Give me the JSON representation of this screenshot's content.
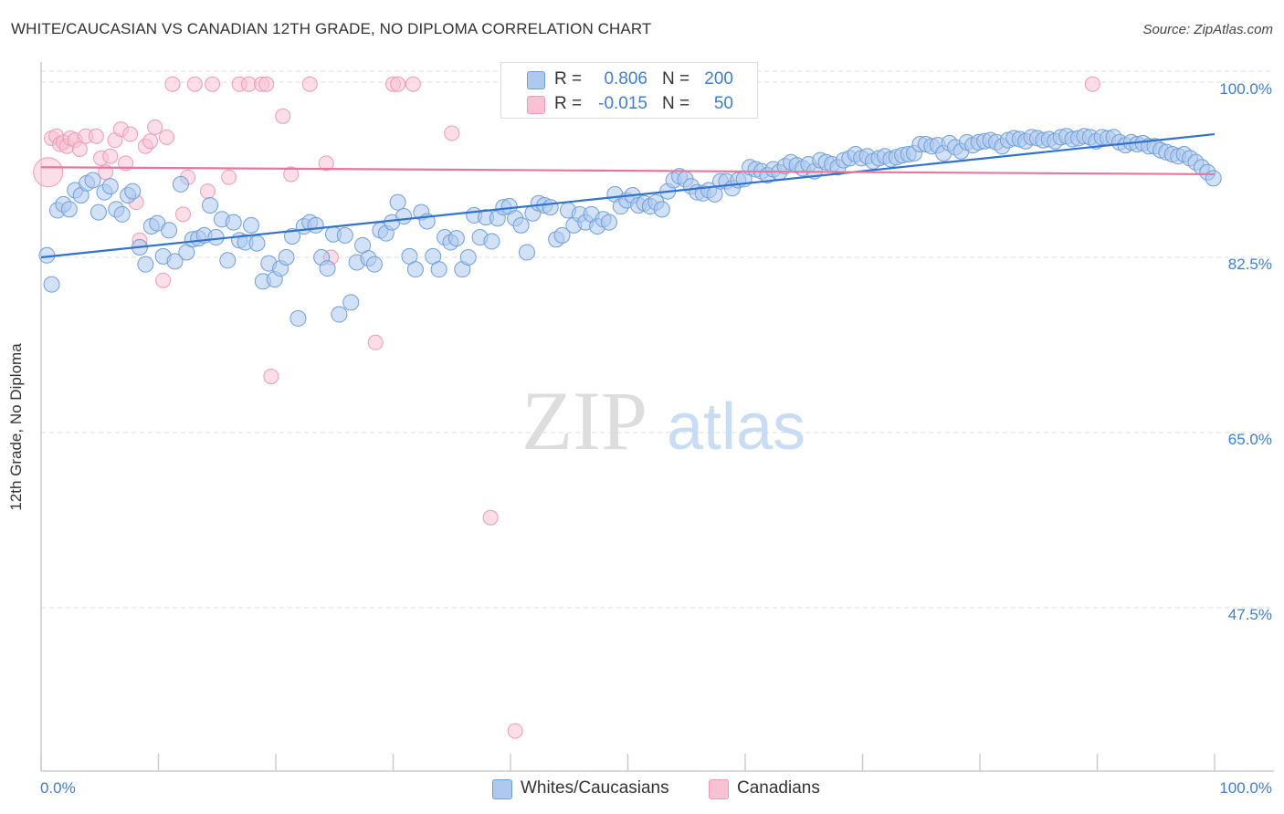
{
  "title": "WHITE/CAUCASIAN VS CANADIAN 12TH GRADE, NO DIPLOMA CORRELATION CHART",
  "source": "Source: ZipAtlas.com",
  "watermark": {
    "zip": "ZIP",
    "atlas": "atlas"
  },
  "colors": {
    "blue_fill": "#aec9ee",
    "blue_stroke": "#6e9fd9",
    "blue_line": "#2f72d0",
    "pink_fill": "#f7c3d3",
    "pink_stroke": "#ee9ab5",
    "pink_line": "#e6779c",
    "tick_label": "#3e7fcf",
    "grid": "#dddddd"
  },
  "legend": {
    "r_label": "R =",
    "n_label": "N =",
    "rows": [
      {
        "series": "Whites/Caucasians",
        "r": "0.806",
        "n": "200",
        "color": "#aec9ee"
      },
      {
        "series": "Canadians",
        "r": "-0.015",
        "n": "50",
        "color": "#f7c3d3"
      }
    ]
  },
  "chart_data": {
    "type": "scatter",
    "title": "WHITE/CAUCASIAN VS CANADIAN 12TH GRADE, NO DIPLOMA CORRELATION CHART",
    "xlabel": "",
    "ylabel": "12th Grade, No Diploma",
    "xlim": [
      0,
      100
    ],
    "ylim": [
      32.5,
      101.5
    ],
    "x_tick_labels": [
      "0.0%",
      "100.0%"
    ],
    "y_ticks": [
      100.0,
      82.5,
      65.0,
      47.5
    ],
    "y_tick_labels": [
      "100.0%",
      "82.5%",
      "65.0%",
      "47.5%"
    ],
    "grid": true,
    "legend_position": "top-center",
    "series": [
      {
        "name": "Whites/Caucasians",
        "color": "#aec9ee",
        "trend": {
          "x": [
            0,
            100
          ],
          "y": [
            82.5,
            94.8
          ]
        },
        "points": [
          [
            0.5,
            82.7
          ],
          [
            0.9,
            79.8
          ],
          [
            1.4,
            87.2
          ],
          [
            1.9,
            87.8
          ],
          [
            2.4,
            87.3
          ],
          [
            2.9,
            89.2
          ],
          [
            3.4,
            88.7
          ],
          [
            3.9,
            89.9
          ],
          [
            4.4,
            90.2
          ],
          [
            4.9,
            87.0
          ],
          [
            5.4,
            89.0
          ],
          [
            5.9,
            89.6
          ],
          [
            6.4,
            87.3
          ],
          [
            6.9,
            86.8
          ],
          [
            7.4,
            88.7
          ],
          [
            7.8,
            89.1
          ],
          [
            8.4,
            83.5
          ],
          [
            8.9,
            81.8
          ],
          [
            9.4,
            85.6
          ],
          [
            9.9,
            85.9
          ],
          [
            10.4,
            82.6
          ],
          [
            10.9,
            85.2
          ],
          [
            11.4,
            82.1
          ],
          [
            11.9,
            89.8
          ],
          [
            12.4,
            83.0
          ],
          [
            12.9,
            84.3
          ],
          [
            13.4,
            84.4
          ],
          [
            13.9,
            84.7
          ],
          [
            14.4,
            87.7
          ],
          [
            14.9,
            84.5
          ],
          [
            15.4,
            86.3
          ],
          [
            15.9,
            82.2
          ],
          [
            16.4,
            86.0
          ],
          [
            16.9,
            84.2
          ],
          [
            17.4,
            84.0
          ],
          [
            17.9,
            85.7
          ],
          [
            18.4,
            83.9
          ],
          [
            18.9,
            80.1
          ],
          [
            19.4,
            81.9
          ],
          [
            19.9,
            80.3
          ],
          [
            20.4,
            81.4
          ],
          [
            20.9,
            82.5
          ],
          [
            21.4,
            84.6
          ],
          [
            21.9,
            76.4
          ],
          [
            22.4,
            85.6
          ],
          [
            22.9,
            86.0
          ],
          [
            23.4,
            85.7
          ],
          [
            23.9,
            82.5
          ],
          [
            24.4,
            81.4
          ],
          [
            24.9,
            84.8
          ],
          [
            25.4,
            76.8
          ],
          [
            25.9,
            84.7
          ],
          [
            26.4,
            78.0
          ],
          [
            26.9,
            82.0
          ],
          [
            27.4,
            83.7
          ],
          [
            27.9,
            82.4
          ],
          [
            28.4,
            81.8
          ],
          [
            28.9,
            85.2
          ],
          [
            29.4,
            84.9
          ],
          [
            29.9,
            86.0
          ],
          [
            30.4,
            88.0
          ],
          [
            30.9,
            86.6
          ],
          [
            31.4,
            82.6
          ],
          [
            31.9,
            81.3
          ],
          [
            32.4,
            87.0
          ],
          [
            32.9,
            86.1
          ],
          [
            33.4,
            82.6
          ],
          [
            33.9,
            81.3
          ],
          [
            34.4,
            84.5
          ],
          [
            34.9,
            84.0
          ],
          [
            35.4,
            84.4
          ],
          [
            35.9,
            81.3
          ],
          [
            36.4,
            82.5
          ],
          [
            36.9,
            86.7
          ],
          [
            37.4,
            84.5
          ],
          [
            37.9,
            86.5
          ],
          [
            38.4,
            84.1
          ],
          [
            38.9,
            86.4
          ],
          [
            39.4,
            87.5
          ],
          [
            39.9,
            87.6
          ],
          [
            40.4,
            86.4
          ],
          [
            40.9,
            85.7
          ],
          [
            41.4,
            83.0
          ],
          [
            41.9,
            86.9
          ],
          [
            42.4,
            87.9
          ],
          [
            42.9,
            87.7
          ],
          [
            43.4,
            87.5
          ],
          [
            43.9,
            84.3
          ],
          [
            44.4,
            84.7
          ],
          [
            44.9,
            87.2
          ],
          [
            45.4,
            85.7
          ],
          [
            45.9,
            86.8
          ],
          [
            46.4,
            86.0
          ],
          [
            46.9,
            86.8
          ],
          [
            47.4,
            85.6
          ],
          [
            47.9,
            86.3
          ],
          [
            48.4,
            86.0
          ],
          [
            48.9,
            88.8
          ],
          [
            49.4,
            87.6
          ],
          [
            49.9,
            88.2
          ],
          [
            50.4,
            88.7
          ],
          [
            50.9,
            87.7
          ],
          [
            51.4,
            87.9
          ],
          [
            51.9,
            87.6
          ],
          [
            52.4,
            88.0
          ],
          [
            52.9,
            87.3
          ],
          [
            53.4,
            89.1
          ],
          [
            53.9,
            90.2
          ],
          [
            54.4,
            90.6
          ],
          [
            54.9,
            90.3
          ],
          [
            55.4,
            89.6
          ],
          [
            55.9,
            89.0
          ],
          [
            56.4,
            88.9
          ],
          [
            56.9,
            89.2
          ],
          [
            57.4,
            88.8
          ],
          [
            57.9,
            90.1
          ],
          [
            58.4,
            90.1
          ],
          [
            58.9,
            89.4
          ],
          [
            59.4,
            90.2
          ],
          [
            59.9,
            90.3
          ],
          [
            60.4,
            91.5
          ],
          [
            60.9,
            91.3
          ],
          [
            61.4,
            91.1
          ],
          [
            61.9,
            90.7
          ],
          [
            62.4,
            91.3
          ],
          [
            62.9,
            91.0
          ],
          [
            63.4,
            91.6
          ],
          [
            63.9,
            92.0
          ],
          [
            64.4,
            91.7
          ],
          [
            64.9,
            91.4
          ],
          [
            65.4,
            91.8
          ],
          [
            65.9,
            91.1
          ],
          [
            66.4,
            92.2
          ],
          [
            66.9,
            92.0
          ],
          [
            67.4,
            91.8
          ],
          [
            67.9,
            91.5
          ],
          [
            68.4,
            92.2
          ],
          [
            68.9,
            92.4
          ],
          [
            69.4,
            92.8
          ],
          [
            69.9,
            92.4
          ],
          [
            70.4,
            92.6
          ],
          [
            70.9,
            92.1
          ],
          [
            71.4,
            92.4
          ],
          [
            71.9,
            92.6
          ],
          [
            72.4,
            92.3
          ],
          [
            72.9,
            92.5
          ],
          [
            73.4,
            92.7
          ],
          [
            73.9,
            92.8
          ],
          [
            74.4,
            92.9
          ],
          [
            74.9,
            93.8
          ],
          [
            75.4,
            93.8
          ],
          [
            75.9,
            93.6
          ],
          [
            76.4,
            93.7
          ],
          [
            76.9,
            92.9
          ],
          [
            77.4,
            93.9
          ],
          [
            77.9,
            93.5
          ],
          [
            78.4,
            93.1
          ],
          [
            78.9,
            94.0
          ],
          [
            79.4,
            93.7
          ],
          [
            79.9,
            94.0
          ],
          [
            80.4,
            94.1
          ],
          [
            80.9,
            94.2
          ],
          [
            81.4,
            94.0
          ],
          [
            81.9,
            93.6
          ],
          [
            82.4,
            94.2
          ],
          [
            82.9,
            94.4
          ],
          [
            83.4,
            94.3
          ],
          [
            83.9,
            94.1
          ],
          [
            84.4,
            94.5
          ],
          [
            84.9,
            94.4
          ],
          [
            85.4,
            94.2
          ],
          [
            85.9,
            94.3
          ],
          [
            86.4,
            94.1
          ],
          [
            86.9,
            94.5
          ],
          [
            87.4,
            94.6
          ],
          [
            87.9,
            94.3
          ],
          [
            88.4,
            94.4
          ],
          [
            88.9,
            94.6
          ],
          [
            89.4,
            94.5
          ],
          [
            89.9,
            94.1
          ],
          [
            90.4,
            94.5
          ],
          [
            90.9,
            94.4
          ],
          [
            91.4,
            94.5
          ],
          [
            91.9,
            94.0
          ],
          [
            92.4,
            93.7
          ],
          [
            92.9,
            94.0
          ],
          [
            93.4,
            93.8
          ],
          [
            93.9,
            93.9
          ],
          [
            94.4,
            93.6
          ],
          [
            94.9,
            93.6
          ],
          [
            95.4,
            93.2
          ],
          [
            95.9,
            93.0
          ],
          [
            96.4,
            92.8
          ],
          [
            96.9,
            92.6
          ],
          [
            97.4,
            92.8
          ],
          [
            97.9,
            92.4
          ],
          [
            98.4,
            92.0
          ],
          [
            98.9,
            91.5
          ],
          [
            99.4,
            91.0
          ],
          [
            99.9,
            90.4
          ]
        ]
      },
      {
        "name": "Canadians",
        "color": "#f7c3d3",
        "trend": {
          "x": [
            0,
            100
          ],
          "y": [
            91.5,
            90.8
          ]
        },
        "points": [
          [
            0.6,
            91.0
          ],
          [
            0.9,
            94.4
          ],
          [
            1.3,
            94.6
          ],
          [
            1.6,
            93.8
          ],
          [
            1.9,
            94.0
          ],
          [
            2.2,
            93.6
          ],
          [
            2.5,
            94.4
          ],
          [
            2.9,
            94.2
          ],
          [
            3.3,
            93.3
          ],
          [
            3.8,
            94.6
          ],
          [
            4.7,
            94.6
          ],
          [
            5.1,
            92.4
          ],
          [
            5.5,
            91.0
          ],
          [
            5.9,
            92.6
          ],
          [
            6.3,
            94.2
          ],
          [
            6.8,
            95.3
          ],
          [
            7.2,
            91.9
          ],
          [
            7.6,
            94.8
          ],
          [
            8.1,
            88.0
          ],
          [
            8.4,
            84.2
          ],
          [
            8.9,
            93.6
          ],
          [
            9.3,
            94.1
          ],
          [
            9.7,
            95.5
          ],
          [
            10.4,
            80.2
          ],
          [
            10.7,
            94.5
          ],
          [
            11.2,
            99.8
          ],
          [
            12.1,
            86.8
          ],
          [
            12.5,
            90.5
          ],
          [
            13.1,
            99.8
          ],
          [
            14.2,
            89.1
          ],
          [
            14.6,
            99.8
          ],
          [
            16.0,
            90.5
          ],
          [
            16.9,
            99.8
          ],
          [
            17.7,
            99.8
          ],
          [
            18.8,
            99.8
          ],
          [
            19.2,
            99.8
          ],
          [
            19.6,
            70.6
          ],
          [
            20.6,
            96.6
          ],
          [
            21.3,
            90.8
          ],
          [
            22.9,
            99.8
          ],
          [
            24.3,
            91.9
          ],
          [
            24.7,
            82.5
          ],
          [
            28.5,
            74.0
          ],
          [
            30.0,
            99.8
          ],
          [
            30.4,
            99.8
          ],
          [
            31.7,
            99.8
          ],
          [
            35.0,
            94.9
          ],
          [
            38.3,
            56.5
          ],
          [
            40.4,
            35.2
          ],
          [
            89.6,
            99.8
          ]
        ]
      }
    ]
  }
}
